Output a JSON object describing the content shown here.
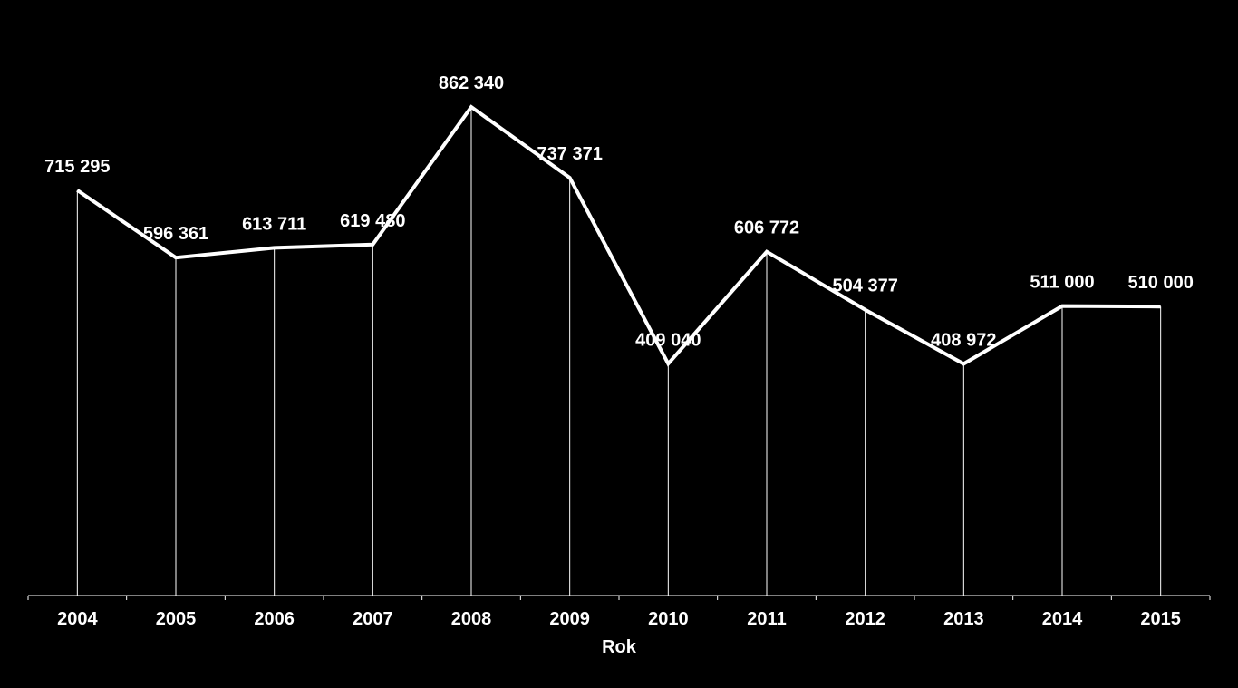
{
  "chart_data": {
    "type": "line",
    "categories": [
      "2004",
      "2005",
      "2006",
      "2007",
      "2008",
      "2009",
      "2010",
      "2011",
      "2012",
      "2013",
      "2014",
      "2015"
    ],
    "series": [
      {
        "values": [
          715295,
          596361,
          613711,
          619480,
          862340,
          737371,
          409040,
          606772,
          504377,
          408972,
          511000,
          510000
        ],
        "labels": [
          "715 295",
          "596 361",
          "613 711",
          "619 480",
          "862 340",
          "737 371",
          "409 040",
          "606 772",
          "504 377",
          "408 972",
          "511 000",
          "510 000"
        ]
      }
    ],
    "title": "",
    "xlabel": "Rok",
    "ylabel": "",
    "ylim": [
      0,
      1000000
    ],
    "grid": false,
    "drop_lines": true,
    "legend": "none",
    "colors": {
      "background": "#000000",
      "line": "#ffffff",
      "text": "#ffffff"
    }
  }
}
